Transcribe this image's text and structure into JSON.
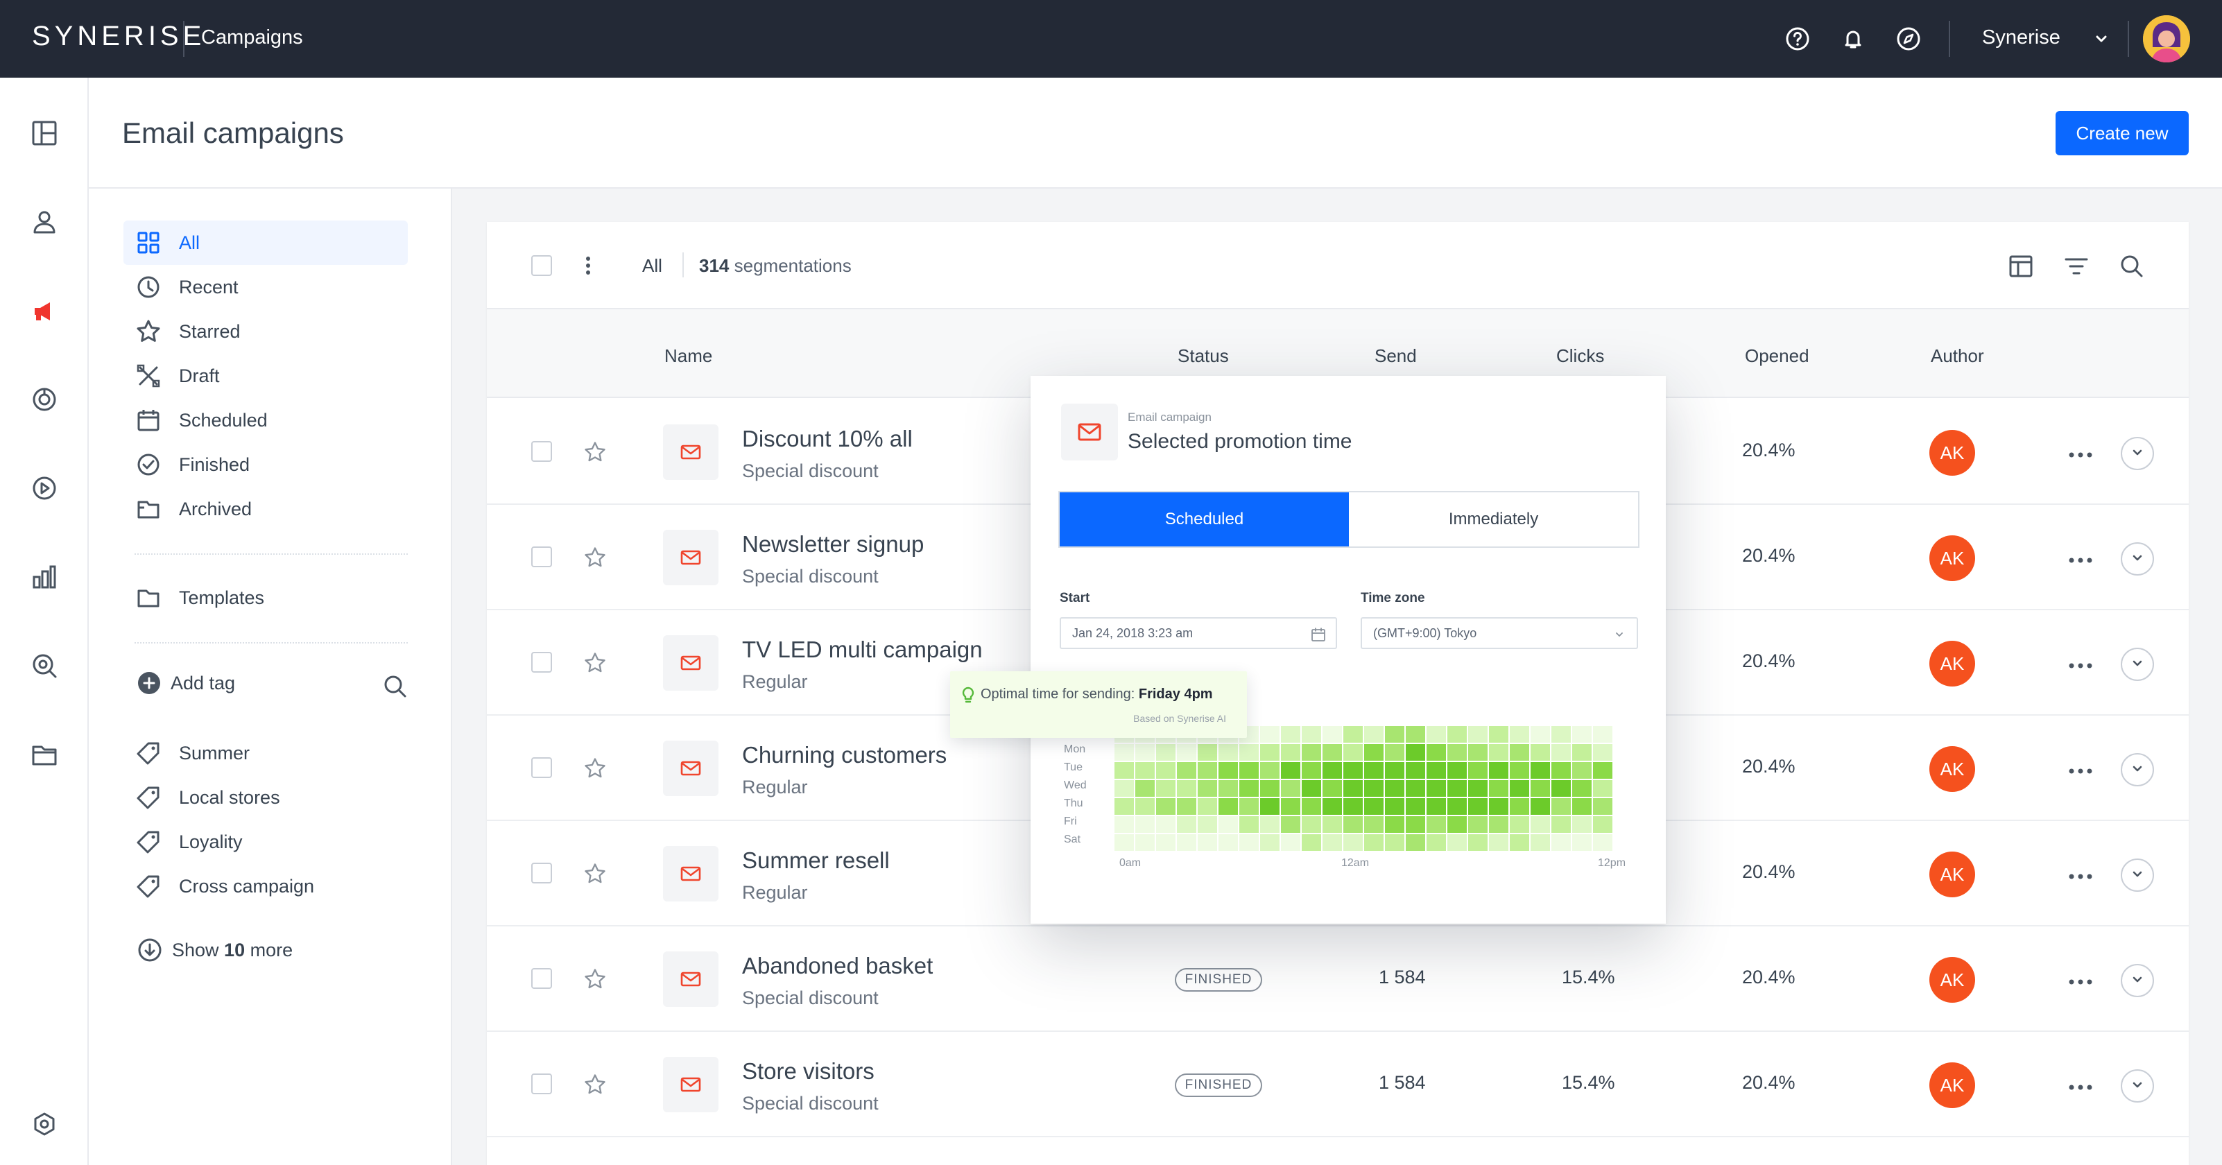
{
  "topbar": {
    "logo": "SYNERISE",
    "app_title": "Campaigns",
    "org_name": "Synerise"
  },
  "header": {
    "title": "Email campaigns",
    "create_label": "Create new"
  },
  "folders": {
    "items": [
      {
        "label": "All",
        "icon": "grid-icon",
        "active": true
      },
      {
        "label": "Recent",
        "icon": "clock-icon"
      },
      {
        "label": "Starred",
        "icon": "star-icon"
      },
      {
        "label": "Draft",
        "icon": "draft-icon"
      },
      {
        "label": "Scheduled",
        "icon": "calendar-icon"
      },
      {
        "label": "Finished",
        "icon": "check-circle-icon"
      },
      {
        "label": "Archived",
        "icon": "archive-icon"
      }
    ],
    "templates_label": "Templates",
    "add_tag_label": "Add tag",
    "tags": [
      "Summer",
      "Local stores",
      "Loyality",
      "Cross campaign"
    ],
    "show_more": {
      "prefix": "Show ",
      "count": "10",
      "suffix": " more"
    }
  },
  "toolbar": {
    "filter_label": "All",
    "count": "314",
    "count_suffix": " segmentations"
  },
  "table": {
    "columns": {
      "name": "Name",
      "status": "Status",
      "send": "Send",
      "clicks": "Clicks",
      "opened": "Opened",
      "author": "Author"
    },
    "rows": [
      {
        "name": "Discount 10% all",
        "sub": "Special discount",
        "status": "",
        "send": "",
        "clicks": "",
        "opened": "20.4%",
        "author": "AK"
      },
      {
        "name": "Newsletter signup",
        "sub": "Special discount",
        "status": "",
        "send": "",
        "clicks": "",
        "opened": "20.4%",
        "author": "AK"
      },
      {
        "name": "TV LED multi campaign",
        "sub": "Regular",
        "status": "",
        "send": "",
        "clicks": "",
        "opened": "20.4%",
        "author": "AK"
      },
      {
        "name": "Churning customers",
        "sub": "Regular",
        "status": "",
        "send": "",
        "clicks": "",
        "opened": "20.4%",
        "author": "AK"
      },
      {
        "name": "Summer resell",
        "sub": "Regular",
        "status": "",
        "send": "",
        "clicks": "",
        "opened": "20.4%",
        "author": "AK"
      },
      {
        "name": "Abandoned basket",
        "sub": "Special discount",
        "status": "FINISHED",
        "send": "1 584",
        "clicks": "15.4%",
        "opened": "20.4%",
        "author": "AK"
      },
      {
        "name": "Store visitors",
        "sub": "Special discount",
        "status": "FINISHED",
        "send": "1 584",
        "clicks": "15.4%",
        "opened": "20.4%",
        "author": "AK"
      }
    ]
  },
  "popover": {
    "kicker": "Email campaign",
    "title": "Selected promotion time",
    "tabs": [
      "Scheduled",
      "Immediately"
    ],
    "start_label": "Start",
    "start_value": "Jan 24, 2018 3:23 am",
    "tz_label": "Time zone",
    "tz_value": "(GMT+9:00) Tokyo",
    "days": [
      "Mon",
      "Tue",
      "Wed",
      "Thu",
      "Fri",
      "Sat"
    ],
    "hours": [
      "0am",
      "12am",
      "12pm"
    ]
  },
  "tooltip": {
    "prefix": "Optimal time for sending: ",
    "value": "Friday 4pm",
    "note": "Based on Synerise AI"
  },
  "colors": {
    "accent": "#0b68ff",
    "topbar": "#232936",
    "author": "#f5511e",
    "mail": "#f0452d"
  }
}
